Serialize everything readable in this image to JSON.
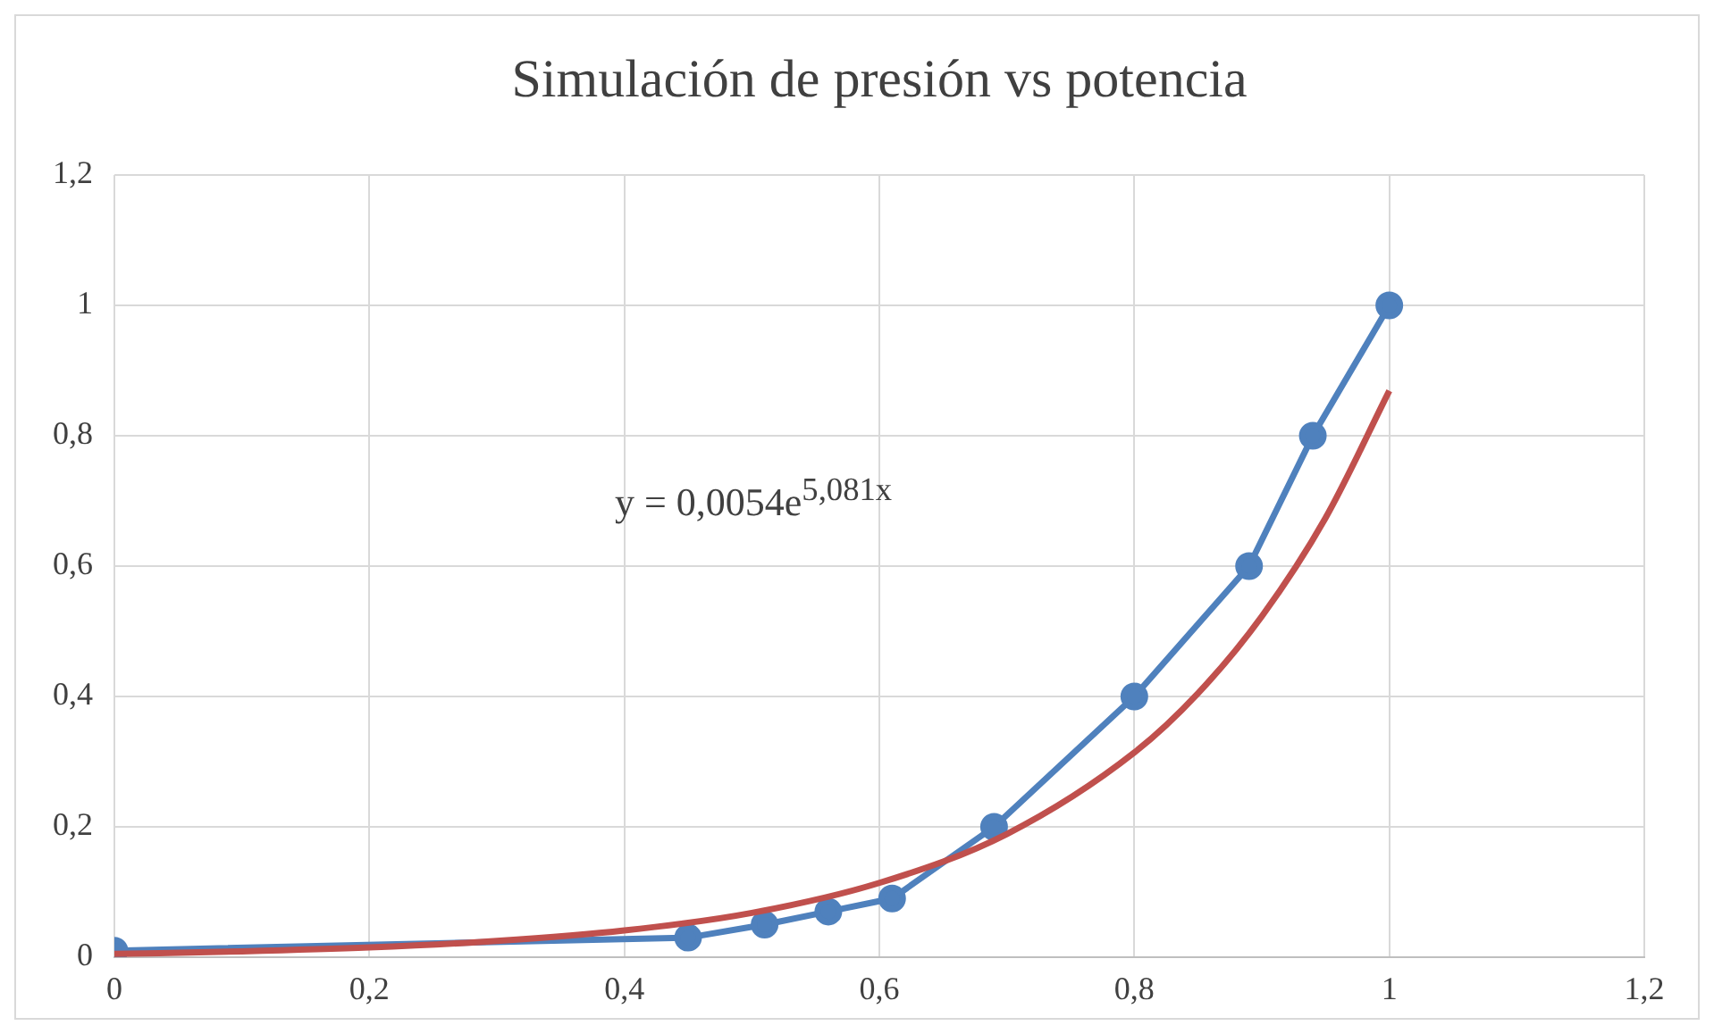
{
  "chart_data": {
    "type": "line",
    "title": "Simulación de presión vs potencia",
    "xlim": [
      0,
      1.2
    ],
    "xticks": [
      0,
      {
        "value": 0.2,
        "label": "0,2"
      },
      {
        "value": 0.4,
        "label": "0,4"
      },
      {
        "value": 0.6,
        "label": "0,6"
      },
      {
        "value": 0.8,
        "label": "0,8"
      },
      1,
      {
        "value": 1.2,
        "label": "1,2"
      }
    ],
    "ylim": [
      0,
      1.2
    ],
    "yticks": [
      0,
      {
        "value": 0.2,
        "label": "0,2"
      },
      {
        "value": 0.4,
        "label": "0,4"
      },
      {
        "value": 0.6,
        "label": "0,6"
      },
      {
        "value": 0.8,
        "label": "0,8"
      },
      1,
      {
        "value": 1.2,
        "label": "1,2"
      }
    ],
    "grid": true,
    "legend": false,
    "annotations": [
      "y = 0,0054e$^{5,081x}$"
    ],
    "series": [
      {
        "type": "line",
        "color": "#4f81bd",
        "marker": "circle",
        "x": [
          0,
          0.45,
          0.51,
          0.56,
          0.61,
          0.69,
          0.8,
          0.89,
          0.94,
          1
        ],
        "values": [
          0.01,
          0.03,
          0.05,
          0.07,
          0.09,
          0.2,
          0.4,
          0.6,
          0.8,
          1
        ]
      },
      {
        "type": "line",
        "color": "#c0504d",
        "marker": "none",
        "x": [
          0,
          0.1,
          0.2,
          0.3,
          0.4,
          0.5,
          0.6,
          0.7,
          0.8,
          0.85,
          0.9,
          0.95,
          1
        ],
        "values": [
          0.005,
          0.009,
          0.015,
          0.025,
          0.041,
          0.068,
          0.114,
          0.189,
          0.314,
          0.405,
          0.523,
          0.674,
          0.869
        ]
      }
    ]
  }
}
